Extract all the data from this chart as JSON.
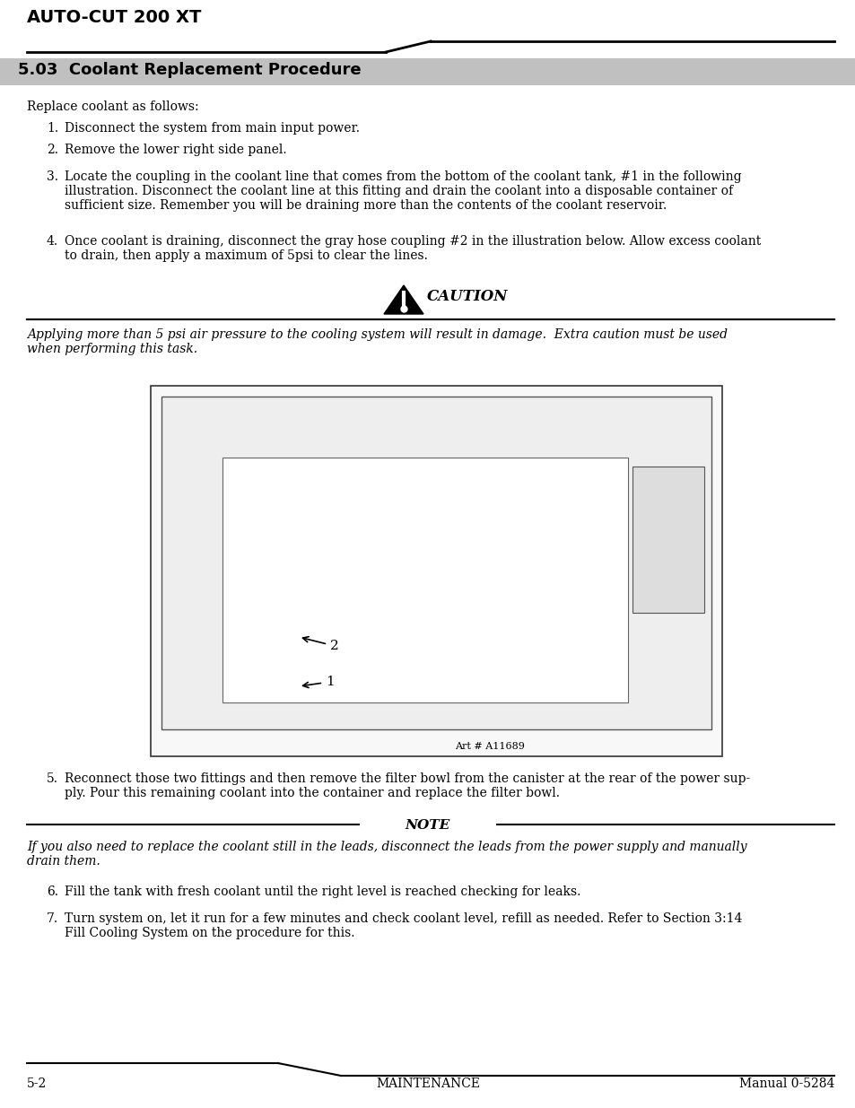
{
  "page_title": "AUTO-CUT 200 XT",
  "section_title": "5.03  Coolant Replacement Procedure",
  "section_bg": "#c0c0c0",
  "intro_text": "Replace coolant as follows:",
  "step1": "Disconnect the system from main input power.",
  "step2": "Remove the lower right side panel.",
  "step3_line1": "Locate the coupling in the coolant line that comes from the bottom of the coolant tank, #1 in the following",
  "step3_line2": "illustration. Disconnect the coolant line at this fitting and drain the coolant into a disposable container of",
  "step3_line3": "sufficient size. Remember you will be draining more than the contents of the coolant reservoir.",
  "step4_line1": "Once coolant is draining, disconnect the gray hose coupling #2 in the illustration below. Allow excess coolant",
  "step4_line2": "to drain, then apply a maximum of 5psi to clear the lines.",
  "caution_label": "CAUTION",
  "caution_text_line1": "Applying more than 5 psi air pressure to the cooling system will result in damage.  Extra caution must be used",
  "caution_text_line2": "when performing this task.",
  "art_number": "Art # A11689",
  "step5_line1": "Reconnect those two fittings and then remove the filter bowl from the canister at the rear of the power sup-",
  "step5_line2": "ply. Pour this remaining coolant into the container and replace the filter bowl.",
  "note_label": "NOTE",
  "note_line1": "If you also need to replace the coolant still in the leads, disconnect the leads from the power supply and manually",
  "note_line2": "drain them.",
  "step6": "Fill the tank with fresh coolant until the right level is reached checking for leaks.",
  "step7_line1": "Turn system on, let it run for a few minutes and check coolant level, refill as needed. Refer to Section 3:14",
  "step7_line2": "Fill Cooling System on the procedure for this.",
  "footer_left": "5-2",
  "footer_center": "MAINTENANCE",
  "footer_right": "Manual 0-5284",
  "bg_color": "#ffffff",
  "text_color": "#000000",
  "section_text_color": "#000000",
  "img_bg": "#f5f5f5",
  "img_border": "#888888"
}
